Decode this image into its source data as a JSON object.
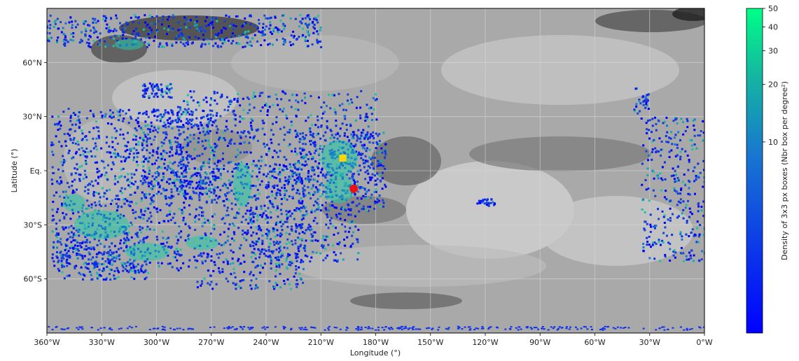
{
  "map": {
    "xlabel": "Longitude (°)",
    "ylabel": "Latitude (°)",
    "x_range": [
      360,
      0
    ],
    "y_range": [
      -90,
      90
    ],
    "x_ticks": [
      {
        "value": 360,
        "label": "360°W"
      },
      {
        "value": 330,
        "label": "330°W"
      },
      {
        "value": 300,
        "label": "300°W"
      },
      {
        "value": 270,
        "label": "270°W"
      },
      {
        "value": 240,
        "label": "240°W"
      },
      {
        "value": 210,
        "label": "210°W"
      },
      {
        "value": 180,
        "label": "180°W"
      },
      {
        "value": 150,
        "label": "150°W"
      },
      {
        "value": 120,
        "label": "120°W"
      },
      {
        "value": 90,
        "label": "90°W"
      },
      {
        "value": 60,
        "label": "60°W"
      },
      {
        "value": 30,
        "label": "30°W"
      },
      {
        "value": 0,
        "label": "0°W"
      }
    ],
    "y_ticks": [
      {
        "value": 60,
        "label": "60°N"
      },
      {
        "value": 30,
        "label": "30°N"
      },
      {
        "value": 0,
        "label": "Eq."
      },
      {
        "value": -30,
        "label": "30°S"
      },
      {
        "value": -60,
        "label": "60°S"
      }
    ],
    "grid": true,
    "markers": [
      {
        "shape": "square",
        "color": "#ffd700",
        "lon": 198,
        "lat": 7
      },
      {
        "shape": "circle",
        "color": "#ee1111",
        "lon": 192,
        "lat": -10
      }
    ]
  },
  "colorbar": {
    "label": "Density of 3x3 px boxes (Nbr box per degree²)",
    "scale": "log",
    "colors": [
      "#0000ff",
      "#00ff88"
    ],
    "ticks": [
      {
        "value": 50,
        "label": "50"
      },
      {
        "value": 40,
        "label": "40"
      },
      {
        "value": 30,
        "label": "30"
      },
      {
        "value": 20,
        "label": "20"
      },
      {
        "value": 10,
        "label": "10"
      }
    ]
  }
}
